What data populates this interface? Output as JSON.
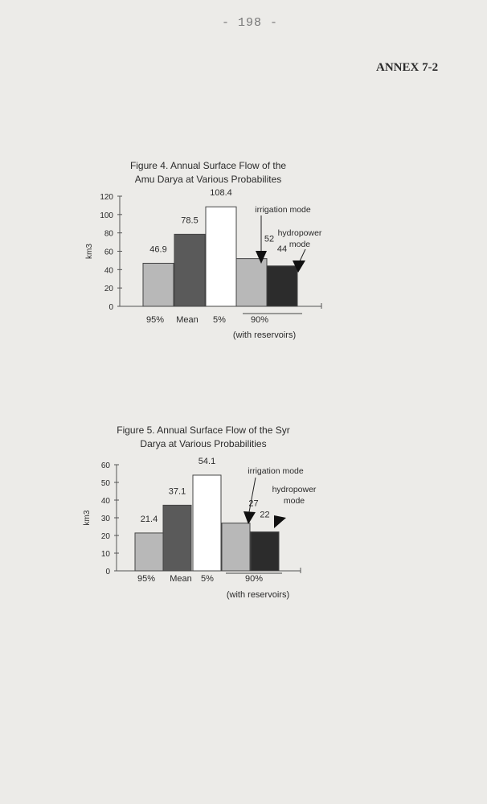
{
  "page": {
    "number": "- 198 -",
    "annex": "ANNEX 7-2"
  },
  "chart_data": [
    {
      "type": "bar",
      "title": "Figure 4. Annual Surface Flow of the Amu Darya at Various Probabilites",
      "title_lines": [
        "Figure 4. Annual Surface Flow of the",
        "Amu Darya at Various Probabilites"
      ],
      "ylabel": "km3",
      "ylim": [
        0,
        120
      ],
      "yticks": [
        0,
        20,
        40,
        60,
        80,
        100,
        120
      ],
      "categories": [
        "95%",
        "Mean",
        "5%",
        "90%"
      ],
      "group_sublabel": "(with reservoirs)",
      "bars": [
        {
          "category": "95%",
          "value": 46.9,
          "label": "46.9",
          "fill": "#b8b8b8"
        },
        {
          "category": "Mean",
          "value": 78.5,
          "label": "78.5",
          "fill": "#5a5a5a"
        },
        {
          "category": "5%",
          "value": 108.4,
          "label": "108.4",
          "fill": "#ffffff"
        },
        {
          "category": "90%",
          "mode": "irrigation mode",
          "value": 52,
          "label": "52",
          "fill": "#b8b8b8"
        },
        {
          "category": "90%",
          "mode": "hydropower mode",
          "value": 44,
          "label": "44",
          "fill": "#2c2c2c"
        }
      ],
      "annotations": {
        "irrigation": "irrigation mode",
        "hydropower_lines": [
          "hydropower",
          "mode"
        ]
      },
      "grid": false
    },
    {
      "type": "bar",
      "title": "Figure 5. Annual Surface Flow of the Syr Darya at Various Probabilities",
      "title_lines": [
        "Figure 5. Annual Surface Flow of the Syr",
        "Darya at Various Probabilities"
      ],
      "ylabel": "km3",
      "ylim": [
        0,
        60
      ],
      "yticks": [
        0,
        10,
        20,
        30,
        40,
        50,
        60
      ],
      "categories": [
        "95%",
        "Mean",
        "5%",
        "90%"
      ],
      "group_sublabel": "(with reservoirs)",
      "bars": [
        {
          "category": "95%",
          "value": 21.4,
          "label": "21.4",
          "fill": "#b8b8b8"
        },
        {
          "category": "Mean",
          "value": 37.1,
          "label": "37.1",
          "fill": "#5a5a5a"
        },
        {
          "category": "5%",
          "value": 54.1,
          "label": "54.1",
          "fill": "#ffffff"
        },
        {
          "category": "90%",
          "mode": "irrigation mode",
          "value": 27,
          "label": "27",
          "fill": "#b8b8b8"
        },
        {
          "category": "90%",
          "mode": "hydropower mode",
          "value": 22,
          "label": "22",
          "fill": "#2c2c2c"
        }
      ],
      "annotations": {
        "irrigation": "irrigation mode",
        "hydropower_lines": [
          "hydropower",
          "mode"
        ]
      },
      "grid": false
    }
  ]
}
